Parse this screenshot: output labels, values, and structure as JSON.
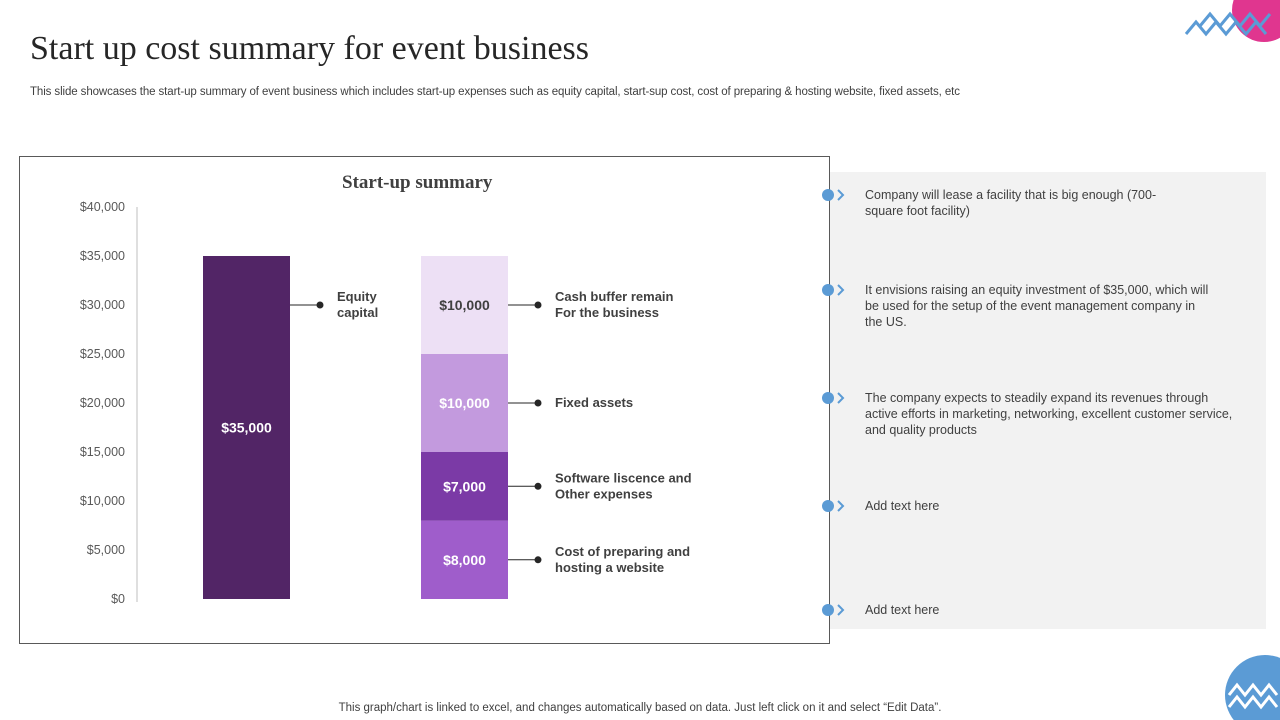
{
  "slide": {
    "title": "Start up cost summary for event business",
    "subtitle": "This slide showcases the start-up summary of event business which includes start-up expenses such as equity capital, start-sup cost, cost of preparing & hosting website, fixed assets, etc",
    "footer": "This graph/chart is linked to excel,  and changes automatically based on data. Just left click on it and select “Edit Data”."
  },
  "chart_data": {
    "type": "bar",
    "title": "Start-up summary",
    "ylim": [
      0,
      40000
    ],
    "yticks": [
      "$0",
      "$5,000",
      "$10,000",
      "$15,000",
      "$20,000",
      "$25,000",
      "$30,000",
      "$35,000",
      "$40,000"
    ],
    "grid": false,
    "bars": [
      {
        "stacked": false,
        "segments": [
          {
            "name": "Equity capital",
            "value": 35000,
            "label": "$35,000",
            "color": "#522566",
            "text_color": "#ffffff"
          }
        ],
        "callouts": [
          {
            "lines": [
              "Equity",
              "capital"
            ],
            "value_level": 30000
          }
        ]
      },
      {
        "stacked": true,
        "segments": [
          {
            "name": "Cost of preparing and hosting a website",
            "value": 8000,
            "label": "$8,000",
            "color": "#9f5dcb",
            "text_color": "#ffffff"
          },
          {
            "name": "Software liscence and Other expenses",
            "value": 7000,
            "label": "$7,000",
            "color": "#7b3aa6",
            "text_color": "#ffffff"
          },
          {
            "name": "Fixed assets",
            "value": 10000,
            "label": "$10,000",
            "color": "#c39ade",
            "text_color": "#ffffff"
          },
          {
            "name": "Cash buffer remain For the business",
            "value": 10000,
            "label": "$10,000",
            "color": "#ede0f5",
            "text_color": "#404040"
          }
        ],
        "callouts": [
          {
            "lines": [
              "Cash buffer remain",
              "For the business"
            ],
            "value_level": 30000
          },
          {
            "lines": [
              "Fixed assets"
            ],
            "value_level": 20000
          },
          {
            "lines": [
              "Software liscence and",
              "Other expenses"
            ],
            "value_level": 11500
          },
          {
            "lines": [
              "Cost of preparing and",
              "hosting  a website"
            ],
            "value_level": 4000
          }
        ]
      }
    ]
  },
  "bullets": [
    {
      "text": "Company will lease a facility that is big enough (700-square foot facility)"
    },
    {
      "text": "It envisions raising an equity investment of $35,000, which will be used for the setup of the event management company in the US."
    },
    {
      "text": "The company expects to steadily expand its revenues through active efforts in marketing, networking, excellent customer service, and quality products"
    },
    {
      "text": "Add text here"
    },
    {
      "text": "Add text here"
    }
  ],
  "colors": {
    "accent_blue": "#5b9bd5",
    "accent_pink": "#e0368f",
    "panel_bg": "#f2f2f2"
  }
}
